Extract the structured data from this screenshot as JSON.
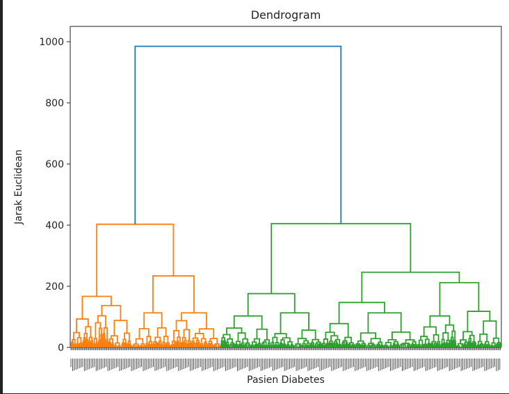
{
  "chart_data": {
    "type": "dendrogram",
    "title": "Dendrogram",
    "xlabel": "Pasien Diabetes",
    "ylabel": "Jarak Euclidean",
    "ylim": [
      0,
      1050
    ],
    "yticks": [
      0,
      200,
      400,
      600,
      800,
      1000
    ],
    "leaf_count": 768,
    "grid": false,
    "colors": {
      "root": "#1f77b4",
      "cluster_1": "#ff7f0e",
      "cluster_2": "#2ca02c",
      "text": "#222222"
    },
    "merges": [
      {
        "cluster": "root",
        "height": 985,
        "left_x": 0.152,
        "right_x": 0.629,
        "left_height": 403,
        "right_height": 405
      },
      {
        "cluster": "cluster_1",
        "height": 403,
        "left_x": 0.064,
        "right_x": 0.236,
        "left_height": 167,
        "right_height": 234
      },
      {
        "cluster": "cluster_1",
        "height": 234,
        "left_x": 0.183,
        "right_x": 0.289,
        "left_height": 113,
        "right_height": 113
      },
      {
        "cluster": "cluster_1",
        "height": 167,
        "left_x": 0.028,
        "right_x": 0.1,
        "left_height": 93,
        "right_height": 137
      },
      {
        "cluster": "cluster_2",
        "height": 405,
        "left_x": 0.472,
        "right_x": 0.782,
        "left_height": 176,
        "right_height": 246
      },
      {
        "cluster": "cluster_2",
        "height": 176,
        "left_x": 0.413,
        "right_x": 0.531,
        "left_height": 103,
        "right_height": 113
      },
      {
        "cluster": "cluster_2",
        "height": 246,
        "left_x": 0.674,
        "right_x": 0.891,
        "left_height": 147,
        "right_height": 212
      },
      {
        "cluster": "cluster_2",
        "height": 147,
        "left_x": 0.617,
        "right_x": 0.731,
        "left_height": 78,
        "right_height": 113
      },
      {
        "cluster": "cluster_2",
        "height": 212,
        "left_x": 0.852,
        "right_x": 0.93,
        "left_height": 103,
        "right_height": 118
      }
    ]
  }
}
